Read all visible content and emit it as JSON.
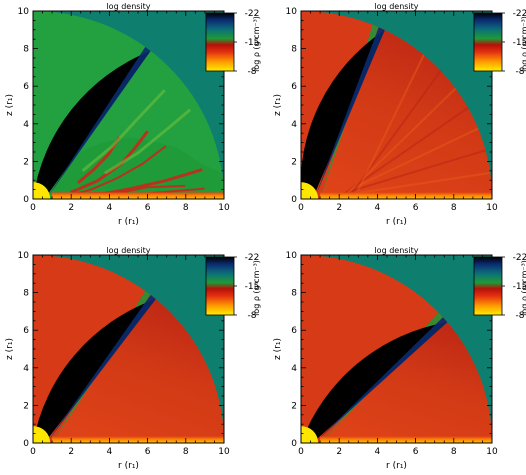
{
  "figure": {
    "panels": 4,
    "layout": "2x2 grid"
  },
  "chart_data": [
    {
      "type": "heatmap",
      "title": "log density",
      "xlabel": "r (r₁)",
      "ylabel": "z (r₁)",
      "xlim": [
        0,
        10
      ],
      "ylim": [
        0,
        10
      ],
      "xticks": [
        "0",
        "2",
        "4",
        "6",
        "8",
        "10"
      ],
      "yticks": [
        "0",
        "2",
        "4",
        "6",
        "8",
        "10"
      ],
      "colorbar": {
        "label": "log ρ (g cm⁻³)",
        "ticks": [
          "-22",
          "-15",
          "-8"
        ],
        "range": [
          -22,
          -8
        ]
      },
      "features": {
        "domain_radius": 10,
        "star_radius": 0.9,
        "evacuated_funnel_angle_deg": 52,
        "wind_outer_angle_deg": 56,
        "wind_pattern": "turbulent"
      }
    },
    {
      "type": "heatmap",
      "title": "log density",
      "xlabel": "r (r₁)",
      "ylabel": "z (r₁)",
      "xlim": [
        0,
        10
      ],
      "ylim": [
        0,
        10
      ],
      "xticks": [
        "0",
        "2",
        "4",
        "6",
        "8",
        "10"
      ],
      "yticks": [
        "0",
        "2",
        "4",
        "6",
        "8",
        "10"
      ],
      "colorbar": {
        "label": "log ρ (g cm⁻³)",
        "ticks": [
          "-22",
          "-15",
          "-8"
        ],
        "range": [
          -22,
          -8
        ]
      },
      "features": {
        "domain_radius": 10,
        "star_radius": 0.9,
        "evacuated_funnel_angle_deg": 64,
        "wind_outer_angle_deg": 68,
        "wind_pattern": "streaky"
      }
    },
    {
      "type": "heatmap",
      "title": "log density",
      "xlabel": "r (r₁)",
      "ylabel": "z (r₁)",
      "xlim": [
        0,
        10
      ],
      "ylim": [
        0,
        10
      ],
      "xticks": [
        "0",
        "2",
        "4",
        "6",
        "8",
        "10"
      ],
      "yticks": [
        "0",
        "2",
        "4",
        "6",
        "8",
        "10"
      ],
      "colorbar": {
        "label": "log ρ (g cm⁻³)",
        "ticks": [
          "-22",
          "-15",
          "-8"
        ],
        "range": [
          -22,
          -8
        ]
      },
      "features": {
        "domain_radius": 10,
        "star_radius": 0.9,
        "evacuated_funnel_angle_deg": 50,
        "wind_outer_angle_deg": 54,
        "wind_pattern": "smooth"
      }
    },
    {
      "type": "heatmap",
      "title": "log density",
      "xlabel": "r (r₁)",
      "ylabel": "z (r₁)",
      "xlim": [
        0,
        10
      ],
      "ylim": [
        0,
        10
      ],
      "xticks": [
        "0",
        "2",
        "4",
        "6",
        "8",
        "10"
      ],
      "yticks": [
        "0",
        "2",
        "4",
        "6",
        "8",
        "10"
      ],
      "colorbar": {
        "label": "log ρ (g cm⁻³)",
        "ticks": [
          "-22",
          "-15",
          "-8"
        ],
        "range": [
          -22,
          -8
        ]
      },
      "features": {
        "domain_radius": 10,
        "star_radius": 0.9,
        "evacuated_funnel_angle_deg": 40,
        "wind_outer_angle_deg": 44,
        "wind_pattern": "smooth"
      }
    }
  ],
  "colors": {
    "background_teal": "#0e7f6e",
    "funnel": "#000000",
    "dense_red": "#d63418",
    "mid_green": "#1e9a38",
    "star_yellow": "#ffe600",
    "colorbar_stops": [
      "#ffef00",
      "#ff9a00",
      "#e23010",
      "#b81008",
      "#1e9a38",
      "#0c6e7a",
      "#0a2a70",
      "#000000"
    ]
  }
}
